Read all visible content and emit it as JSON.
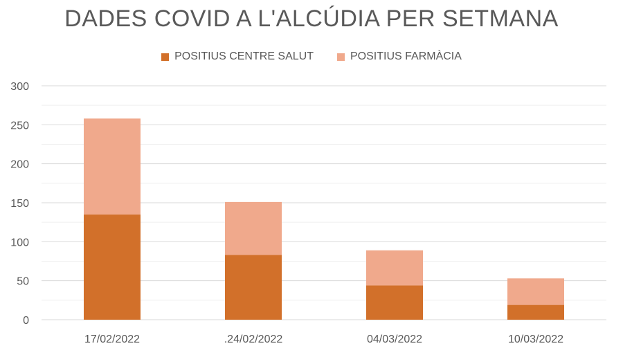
{
  "chart_data": {
    "type": "bar",
    "stacked": true,
    "title": "DADES COVID A L'ALCÚDIA PER SETMANA",
    "xlabel": "",
    "ylabel": "",
    "categories": [
      "17/02/2022",
      "24/02/2022",
      "04/03/2022",
      "10/03/2022"
    ],
    "category_label_texts": [
      "17/02/2022",
      ".24/02/2022",
      "04/03/2022",
      "10/03/2022"
    ],
    "series": [
      {
        "name": "POSITIUS CENTRE SALUT",
        "values": [
          135,
          83,
          44,
          19
        ],
        "color": "#d2702a"
      },
      {
        "name": "POSITIUS FARMÀCIA",
        "values": [
          123,
          68,
          45,
          34
        ],
        "color": "#f0a98c"
      }
    ],
    "ylim": [
      0,
      300
    ],
    "yticks": [
      0,
      50,
      100,
      150,
      200,
      250,
      300
    ],
    "grid": true,
    "legend_position": "top"
  }
}
